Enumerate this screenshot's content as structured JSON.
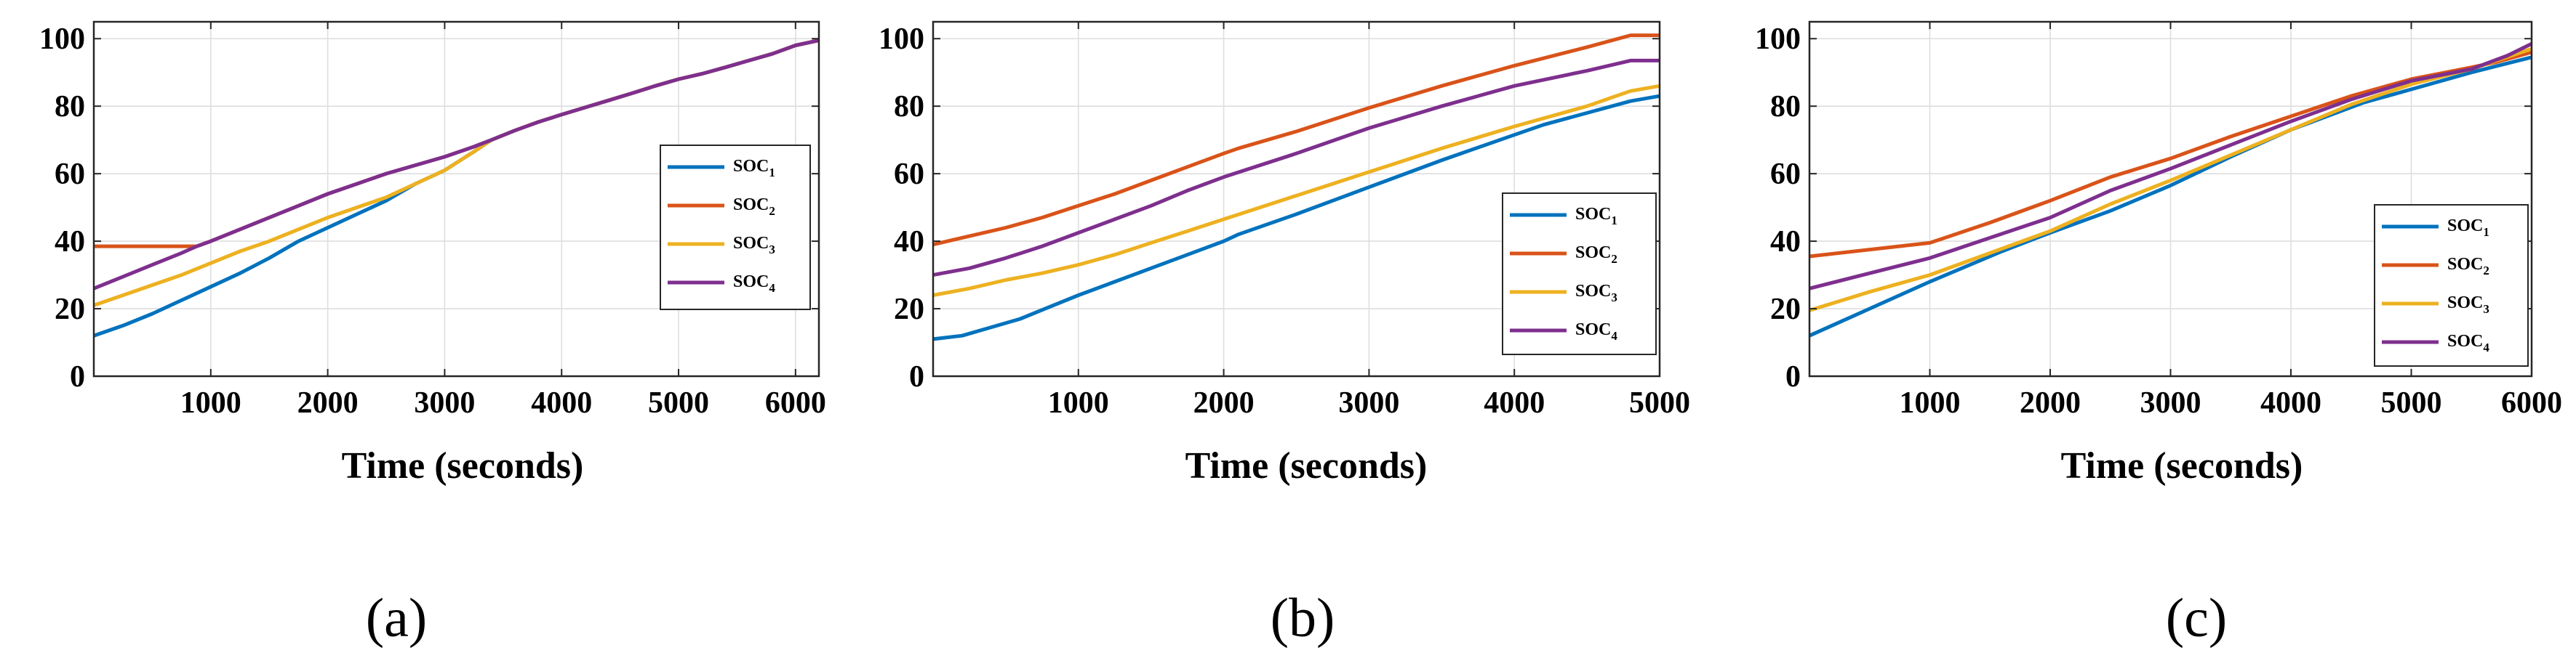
{
  "chart_data": [
    {
      "type": "line",
      "panel_label": "(a)",
      "title": "",
      "xlabel": "Time (seconds)",
      "ylabel": "",
      "xlim": [
        0,
        6200
      ],
      "ylim": [
        0,
        105
      ],
      "xticks": [
        1000,
        2000,
        3000,
        4000,
        5000,
        6000
      ],
      "yticks": [
        0,
        20,
        40,
        60,
        80,
        100
      ],
      "grid": true,
      "legend_position": "right",
      "series": [
        {
          "name": "SOC",
          "subscript": "1",
          "color": "#0072BD",
          "x": [
            0,
            250,
            500,
            750,
            1000,
            1250,
            1500,
            1750,
            2000,
            2250,
            2500,
            2750,
            3000,
            3250,
            3400,
            3600,
            3800,
            4000,
            4200,
            4400,
            4600,
            4800,
            5000,
            5200,
            5400,
            5600,
            5800,
            6000,
            6200
          ],
          "y": [
            12,
            15,
            18.5,
            22.5,
            26.5,
            30.5,
            35,
            40,
            44,
            48,
            52,
            57,
            61,
            66.5,
            70,
            72.8,
            75.3,
            77.5,
            79.6,
            81.7,
            83.8,
            86,
            88,
            89.6,
            91.5,
            93.5,
            95.5,
            98,
            99.5
          ]
        },
        {
          "name": "SOC",
          "subscript": "2",
          "color": "#D95319",
          "x": [
            0,
            880,
            1000,
            1250,
            1500,
            1750,
            2000,
            2250,
            2500,
            2750,
            3000,
            3250,
            3400,
            3600,
            3800,
            4000,
            4200,
            4400,
            4600,
            4800,
            5000,
            5200,
            5400,
            5600,
            5800,
            6000,
            6200
          ],
          "y": [
            38.5,
            38.5,
            40,
            43.5,
            47,
            50.5,
            54,
            57,
            60,
            62.5,
            65,
            68,
            70,
            72.8,
            75.3,
            77.5,
            79.6,
            81.7,
            83.8,
            86,
            88,
            89.6,
            91.5,
            93.5,
            95.5,
            98,
            99.5
          ]
        },
        {
          "name": "SOC",
          "subscript": "3",
          "color": "#EDB120",
          "x": [
            0,
            250,
            500,
            750,
            1000,
            1250,
            1500,
            1750,
            2000,
            2250,
            2500,
            2750,
            3000,
            3250,
            3400,
            3600,
            3800,
            4000,
            4200,
            4400,
            4600,
            4800,
            5000,
            5200,
            5400,
            5600,
            5800,
            6000,
            6200
          ],
          "y": [
            21,
            24,
            27,
            30,
            33.5,
            37,
            40,
            43.5,
            47,
            50,
            53,
            57,
            61,
            66.5,
            70,
            72.8,
            75.3,
            77.5,
            79.6,
            81.7,
            83.8,
            86,
            88,
            89.6,
            91.5,
            93.5,
            95.5,
            98,
            99.5
          ]
        },
        {
          "name": "SOC",
          "subscript": "4",
          "color": "#7E2F8E",
          "x": [
            0,
            250,
            500,
            750,
            880,
            1000,
            1250,
            1500,
            1750,
            2000,
            2250,
            2500,
            2750,
            3000,
            3250,
            3400,
            3600,
            3800,
            4000,
            4200,
            4400,
            4600,
            4800,
            5000,
            5200,
            5400,
            5600,
            5800,
            6000,
            6200
          ],
          "y": [
            26,
            29.5,
            33,
            36.5,
            38.5,
            40,
            43.5,
            47,
            50.5,
            54,
            57,
            60,
            62.5,
            65,
            68,
            70,
            72.8,
            75.3,
            77.5,
            79.6,
            81.7,
            83.8,
            86,
            88,
            89.6,
            91.5,
            93.5,
            95.5,
            98,
            99.5
          ]
        }
      ]
    },
    {
      "type": "line",
      "panel_label": "(b)",
      "title": "",
      "xlabel": "Time (seconds)",
      "ylabel": "",
      "xlim": [
        0,
        5000
      ],
      "ylim": [
        0,
        105
      ],
      "xticks": [
        1000,
        2000,
        3000,
        4000,
        5000
      ],
      "yticks": [
        0,
        20,
        40,
        60,
        80,
        100
      ],
      "grid": true,
      "legend_position": "bottom-right",
      "series": [
        {
          "name": "SOC",
          "subscript": "1",
          "color": "#0072BD",
          "x": [
            0,
            200,
            400,
            600,
            800,
            1000,
            1250,
            1500,
            1750,
            2000,
            2100,
            2500,
            3000,
            3500,
            4000,
            4200,
            4500,
            4800,
            5000
          ],
          "y": [
            11,
            12,
            14.5,
            17,
            20.5,
            24,
            28,
            32,
            36,
            40,
            42,
            48,
            56,
            64,
            71.5,
            74.5,
            78,
            81.5,
            83
          ]
        },
        {
          "name": "SOC",
          "subscript": "2",
          "color": "#D95319",
          "x": [
            0,
            250,
            500,
            750,
            1000,
            1250,
            1500,
            1750,
            2000,
            2100,
            2500,
            3000,
            3500,
            4000,
            4500,
            4800,
            5000
          ],
          "y": [
            39,
            41.5,
            44,
            47,
            50.5,
            54,
            58,
            62,
            66,
            67.5,
            72.5,
            79.5,
            86,
            92,
            97.5,
            101,
            101
          ]
        },
        {
          "name": "SOC",
          "subscript": "3",
          "color": "#EDB120",
          "x": [
            0,
            250,
            500,
            750,
            1000,
            1250,
            1500,
            1750,
            2000,
            2500,
            3000,
            3500,
            4000,
            4500,
            4800,
            5000
          ],
          "y": [
            24,
            26,
            28.5,
            30.5,
            33,
            36,
            39.5,
            43,
            46.5,
            53.5,
            60.5,
            67.5,
            74,
            80,
            84.5,
            86
          ]
        },
        {
          "name": "SOC",
          "subscript": "4",
          "color": "#7E2F8E",
          "x": [
            0,
            250,
            500,
            750,
            1000,
            1250,
            1500,
            1750,
            2000,
            2500,
            3000,
            3500,
            4000,
            4500,
            4800,
            5000
          ],
          "y": [
            30,
            32,
            35,
            38.5,
            42.5,
            46.5,
            50.5,
            55,
            59,
            66,
            73.5,
            80,
            86,
            90.5,
            93.5,
            93.5
          ]
        }
      ]
    },
    {
      "type": "line",
      "panel_label": "(c)",
      "title": "",
      "xlabel": "Time (seconds)",
      "ylabel": "",
      "xlim": [
        0,
        6000
      ],
      "ylim": [
        0,
        105
      ],
      "xticks": [
        1000,
        2000,
        3000,
        4000,
        5000,
        6000
      ],
      "yticks": [
        0,
        20,
        40,
        60,
        80,
        100
      ],
      "grid": true,
      "legend_position": "bottom-right",
      "series": [
        {
          "name": "SOC",
          "subscript": "1",
          "color": "#0072BD",
          "x": [
            0,
            500,
            1000,
            1600,
            2000,
            2500,
            3000,
            3500,
            4000,
            4600,
            5000,
            5500,
            6000
          ],
          "y": [
            12,
            20,
            28,
            37,
            42.5,
            49,
            56.5,
            65,
            73,
            81,
            85,
            90,
            94.5
          ]
        },
        {
          "name": "SOC",
          "subscript": "2",
          "color": "#D95319",
          "x": [
            0,
            1000,
            1500,
            2000,
            2500,
            3000,
            3500,
            4000,
            4500,
            5000,
            5500,
            5700,
            6000
          ],
          "y": [
            35.5,
            39.5,
            45.5,
            52,
            59,
            64.5,
            71,
            77,
            83,
            88,
            91.5,
            93,
            96
          ]
        },
        {
          "name": "SOC",
          "subscript": "3",
          "color": "#EDB120",
          "x": [
            0,
            500,
            1000,
            1500,
            2000,
            2500,
            3000,
            3500,
            4000,
            4500,
            5000,
            5500,
            6000
          ],
          "y": [
            19.5,
            25,
            30,
            36.5,
            43,
            51,
            58,
            65.5,
            73,
            80.5,
            86.5,
            91,
            97
          ]
        },
        {
          "name": "SOC",
          "subscript": "4",
          "color": "#7E2F8E",
          "x": [
            0,
            500,
            1000,
            1500,
            2000,
            2500,
            3000,
            3500,
            4000,
            4500,
            5000,
            5500,
            5800,
            6000
          ],
          "y": [
            26,
            30.5,
            35,
            41,
            47,
            55,
            61.5,
            68.5,
            75.5,
            82,
            87.5,
            91,
            95,
            98.5
          ]
        }
      ]
    }
  ]
}
